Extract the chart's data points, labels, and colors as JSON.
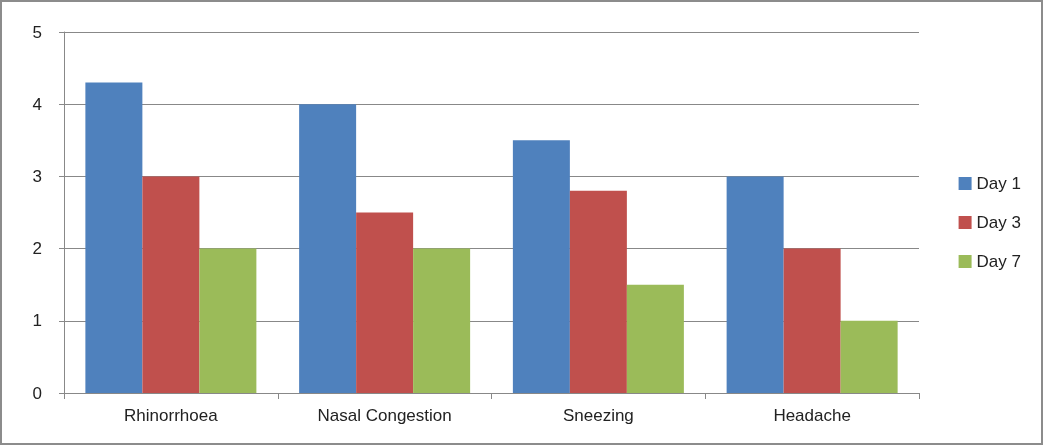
{
  "chart_data": {
    "type": "bar",
    "categories": [
      "Rhinorrhoea",
      "Nasal Congestion",
      "Sneezing",
      "Headache"
    ],
    "series": [
      {
        "name": "Day 1",
        "color": "#4f81bd",
        "values": [
          4.3,
          4,
          3.5,
          3
        ]
      },
      {
        "name": "Day 3",
        "color": "#c0504d",
        "values": [
          3,
          2.5,
          2.8,
          2
        ]
      },
      {
        "name": "Day 7",
        "color": "#9bbb59",
        "values": [
          2,
          2,
          1.5,
          1
        ]
      }
    ],
    "ylim": [
      0,
      5
    ],
    "yticks": [
      0,
      1,
      2,
      3,
      4,
      5
    ],
    "grid": "y",
    "legend": "right"
  }
}
